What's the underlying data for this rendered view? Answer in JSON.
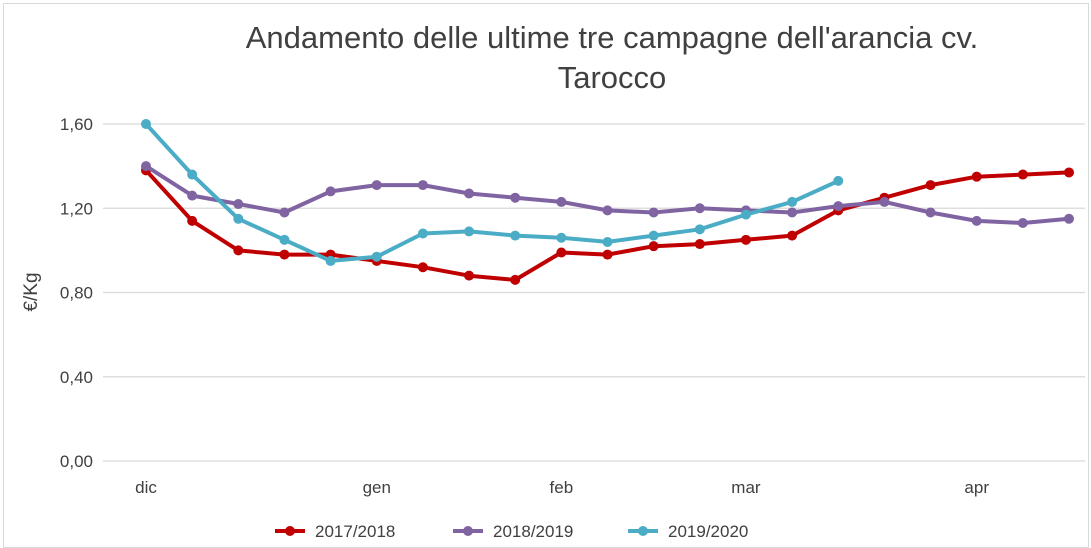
{
  "chart_data": {
    "type": "line",
    "title_line1": "Andamento delle ultime tre campagne dell'arancia cv.",
    "title_line2": "Tarocco",
    "ylabel": "€/Kg",
    "ylim": [
      0,
      1.6
    ],
    "yticks": [
      "0,00",
      "0,40",
      "0,80",
      "1,20",
      "1,60"
    ],
    "yticks_values": [
      0,
      0.4,
      0.8,
      1.2,
      1.6
    ],
    "x_axis_labels": [
      "dic",
      "gen",
      "feb",
      "mar",
      "apr"
    ],
    "x_axis_label_positions": [
      0,
      5,
      9,
      13,
      18
    ],
    "point_count": 21,
    "grid": true,
    "legend_position": "bottom",
    "series": [
      {
        "name": "2017/2018",
        "color": "#c00000",
        "values": [
          1.38,
          1.14,
          1.0,
          0.98,
          0.98,
          0.95,
          0.92,
          0.88,
          0.86,
          0.99,
          0.98,
          1.02,
          1.03,
          1.05,
          1.07,
          1.19,
          1.25,
          1.31,
          1.35,
          1.36,
          1.37
        ]
      },
      {
        "name": "2018/2019",
        "color": "#8064a2",
        "values": [
          1.4,
          1.26,
          1.22,
          1.18,
          1.28,
          1.31,
          1.31,
          1.27,
          1.25,
          1.23,
          1.19,
          1.18,
          1.2,
          1.19,
          1.18,
          1.21,
          1.23,
          1.18,
          1.14,
          1.13,
          1.15
        ]
      },
      {
        "name": "2019/2020",
        "color": "#4bacc6",
        "values": [
          1.6,
          1.36,
          1.15,
          1.05,
          0.95,
          0.97,
          1.08,
          1.09,
          1.07,
          1.06,
          1.04,
          1.07,
          1.1,
          1.17,
          1.23,
          1.33
        ]
      }
    ]
  }
}
